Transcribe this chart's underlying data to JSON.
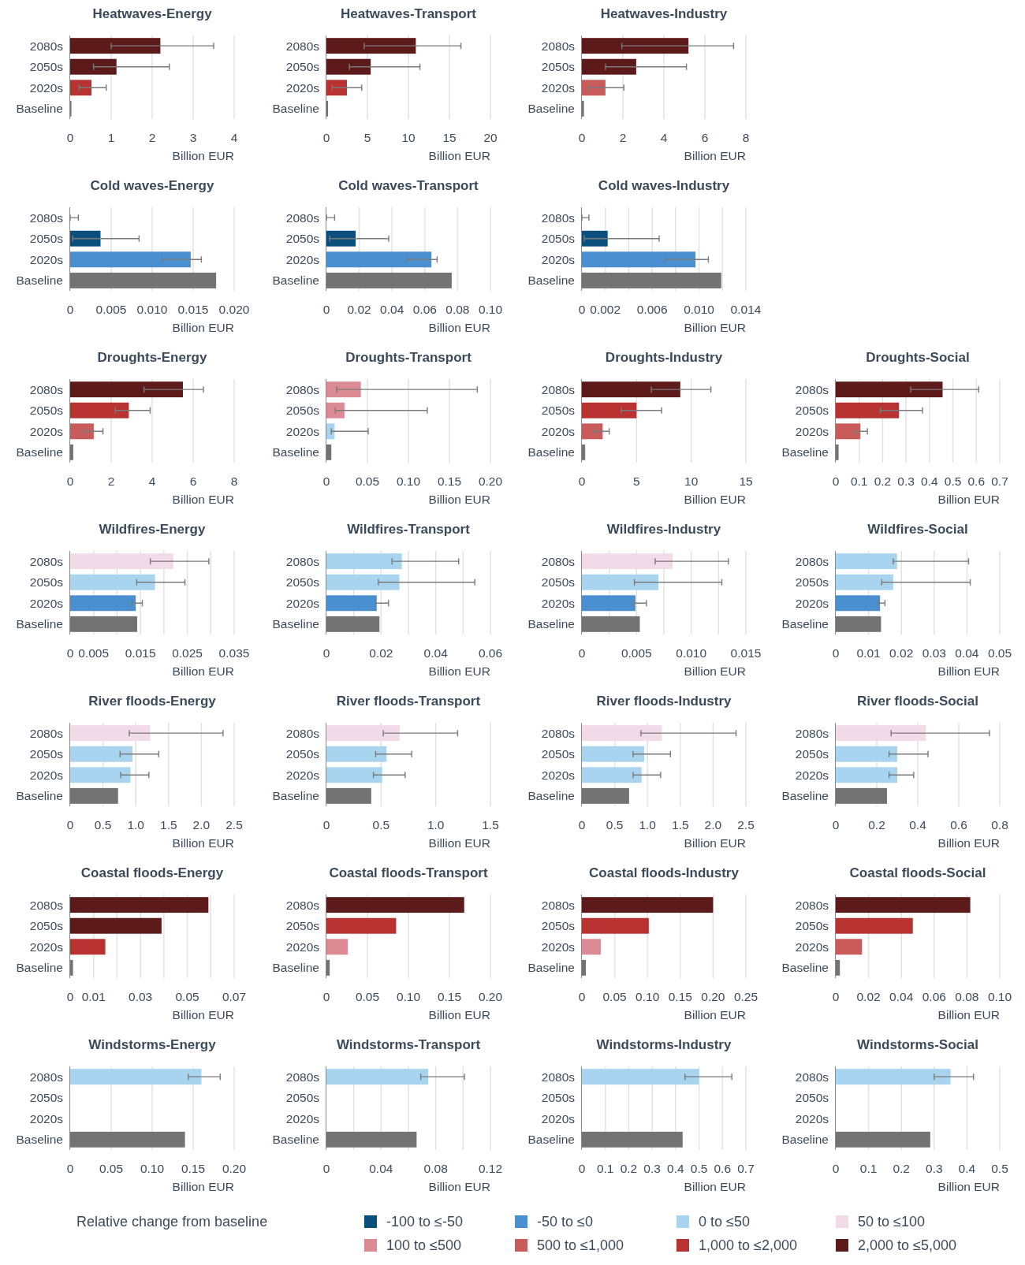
{
  "chart_data": [
    {
      "type": "bar",
      "orientation": "horizontal",
      "title": "Heatwaves-Energy",
      "categories": [
        "2080s",
        "2050s",
        "2020s",
        "Baseline"
      ],
      "values": [
        2.2,
        1.13,
        0.52,
        0.03
      ],
      "colors": [
        "#5c1a1a",
        "#5c1a1a",
        "#b83232",
        "#737373"
      ],
      "errors": [
        [
          1.0,
          3.5
        ],
        [
          0.57,
          2.42
        ],
        [
          0.22,
          0.88
        ],
        null
      ],
      "xlim": [
        0,
        4
      ],
      "xticks": [
        0,
        1,
        2,
        3,
        4
      ],
      "xlabel": "Billion EUR",
      "grid": "x"
    },
    {
      "type": "bar",
      "orientation": "horizontal",
      "title": "Heatwaves-Transport",
      "categories": [
        "2080s",
        "2050s",
        "2020s",
        "Baseline"
      ],
      "values": [
        10.9,
        5.4,
        2.5,
        0.2
      ],
      "colors": [
        "#5c1a1a",
        "#5c1a1a",
        "#b83232",
        "#737373"
      ],
      "errors": [
        [
          4.6,
          16.4
        ],
        [
          2.8,
          11.4
        ],
        [
          0.7,
          4.3
        ],
        null
      ],
      "xlim": [
        0,
        20
      ],
      "xticks": [
        0,
        5,
        10,
        15,
        20
      ],
      "xlabel": "Billion EUR",
      "grid": "x"
    },
    {
      "type": "bar",
      "orientation": "horizontal",
      "title": "Heatwaves-Industry",
      "categories": [
        "2080s",
        "2050s",
        "2020s",
        "Baseline"
      ],
      "values": [
        5.2,
        2.65,
        1.15,
        0.1
      ],
      "colors": [
        "#5c1a1a",
        "#5c1a1a",
        "#c95b5b",
        "#737373"
      ],
      "errors": [
        [
          1.95,
          7.4
        ],
        [
          1.15,
          5.1
        ],
        [
          0.35,
          2.05
        ],
        null
      ],
      "xlim": [
        0,
        8
      ],
      "xticks": [
        0,
        2,
        4,
        6,
        8
      ],
      "xlabel": "Billion EUR",
      "grid": "x"
    },
    {
      "type": "bar",
      "orientation": "horizontal",
      "title": "Cold waves-Energy",
      "categories": [
        "2080s",
        "2050s",
        "2020s",
        "Baseline"
      ],
      "values": [
        0,
        0.0037,
        0.0147,
        0.0178
      ],
      "colors": [
        "#0b4f7c",
        "#0b4f7c",
        "#4a90d0",
        "#737373"
      ],
      "errors": [
        [
          0,
          0.001
        ],
        [
          0.0003,
          0.0084
        ],
        [
          0.0112,
          0.016
        ],
        null
      ],
      "xlim": [
        0,
        0.02
      ],
      "xticks": [
        0,
        0.005,
        {
          "value": 0.01,
          "label": "0.010"
        },
        0.015,
        {
          "value": 0.02,
          "label": "0.020"
        }
      ],
      "xlabel": "Billion EUR",
      "grid": "x"
    },
    {
      "type": "bar",
      "orientation": "horizontal",
      "title": "Cold waves-Transport",
      "categories": [
        "2080s",
        "2050s",
        "2020s",
        "Baseline"
      ],
      "values": [
        0,
        0.0178,
        0.064,
        0.0764
      ],
      "colors": [
        "#0b4f7c",
        "#0b4f7c",
        "#4a90d0",
        "#737373"
      ],
      "errors": [
        [
          0,
          0.005
        ],
        [
          0.002,
          0.038
        ],
        [
          0.049,
          0.0675
        ],
        null
      ],
      "xlim": [
        0,
        0.1
      ],
      "xticks": [
        0,
        0.02,
        0.04,
        0.06,
        0.08,
        {
          "value": 0.1,
          "label": "0.10"
        }
      ],
      "xlabel": "Billion EUR",
      "grid": "x"
    },
    {
      "type": "bar",
      "orientation": "horizontal",
      "title": "Cold waves-Industry",
      "categories": [
        "2080s",
        "2050s",
        "2020s",
        "Baseline"
      ],
      "values": [
        0,
        0.0022,
        0.0097,
        0.0119
      ],
      "colors": [
        "#0b4f7c",
        "#0b4f7c",
        "#4a90d0",
        "#737373"
      ],
      "errors": [
        [
          0,
          0.0006
        ],
        [
          0.0002,
          0.0066
        ],
        [
          0.0071,
          0.0108
        ],
        null
      ],
      "xlim": [
        0,
        0.014
      ],
      "xticks": [
        0,
        0.002,
        {
          "value": 0.004,
          "label": null
        },
        0.006,
        {
          "value": 0.008,
          "label": null
        },
        {
          "value": 0.01,
          "label": "0.010"
        },
        {
          "value": 0.012,
          "label": null
        },
        0.014
      ],
      "xlabel": "Billion EUR",
      "grid": "x"
    },
    {
      "type": "bar",
      "orientation": "horizontal",
      "title": "Droughts-Energy",
      "categories": [
        "2080s",
        "2050s",
        "2020s",
        "Baseline"
      ],
      "values": [
        5.5,
        2.86,
        1.15,
        0.15
      ],
      "colors": [
        "#5c1a1a",
        "#b83232",
        "#c95b5b",
        "#737373"
      ],
      "errors": [
        [
          3.6,
          6.5
        ],
        [
          2.2,
          3.9
        ],
        [
          0.65,
          1.6
        ],
        null
      ],
      "xlim": [
        0,
        8
      ],
      "xticks": [
        0,
        2,
        4,
        6,
        8
      ],
      "xlabel": "Billion EUR",
      "grid": "x"
    },
    {
      "type": "bar",
      "orientation": "horizontal",
      "title": "Droughts-Transport",
      "categories": [
        "2080s",
        "2050s",
        "2020s",
        "Baseline"
      ],
      "values": [
        0.042,
        0.022,
        0.01,
        0.006
      ],
      "colors": [
        "#dc8a93",
        "#dc8a93",
        "#a8d4f0",
        "#737373"
      ],
      "errors": [
        [
          0.0125,
          0.184
        ],
        [
          0.011,
          0.123
        ],
        [
          0.006,
          0.051
        ],
        null
      ],
      "xlim": [
        0,
        0.2
      ],
      "xticks": [
        0,
        0.05,
        {
          "value": 0.1,
          "label": "0.10"
        },
        0.15,
        {
          "value": 0.2,
          "label": "0.20"
        }
      ],
      "xlabel": "Billion EUR",
      "grid": "x"
    },
    {
      "type": "bar",
      "orientation": "horizontal",
      "title": "Droughts-Industry",
      "categories": [
        "2080s",
        "2050s",
        "2020s",
        "Baseline"
      ],
      "values": [
        9,
        5,
        1.9,
        0.3
      ],
      "colors": [
        "#5c1a1a",
        "#b83232",
        "#c95b5b",
        "#737373"
      ],
      "errors": [
        [
          6.35,
          11.8
        ],
        [
          3.6,
          7.3
        ],
        [
          1.0,
          2.5
        ],
        null
      ],
      "xlim": [
        0,
        15
      ],
      "xticks": [
        0,
        5,
        10,
        15
      ],
      "xlabel": "Billion EUR",
      "grid": "x"
    },
    {
      "type": "bar",
      "orientation": "horizontal",
      "title": "Droughts-Social",
      "categories": [
        "2080s",
        "2050s",
        "2020s",
        "Baseline"
      ],
      "values": [
        0.456,
        0.27,
        0.105,
        0.012
      ],
      "colors": [
        "#5c1a1a",
        "#b83232",
        "#c95b5b",
        "#737373"
      ],
      "errors": [
        [
          0.32,
          0.61
        ],
        [
          0.19,
          0.37
        ],
        [
          0.08,
          0.135
        ],
        null
      ],
      "xlim": [
        0,
        0.7
      ],
      "xticks": [
        0,
        0.1,
        0.2,
        0.3,
        0.4,
        0.5,
        0.6,
        0.7
      ],
      "xlabel": "Billion EUR",
      "grid": "x"
    },
    {
      "type": "bar",
      "orientation": "horizontal",
      "title": "Wildfires-Energy",
      "categories": [
        "2080s",
        "2050s",
        "2020s",
        "Baseline"
      ],
      "values": [
        0.022,
        0.0181,
        0.014,
        0.0143
      ],
      "colors": [
        "#f2dbe9",
        "#a8d4f0",
        "#4a90d0",
        "#737373"
      ],
      "errors": [
        [
          0.0171,
          0.0296
        ],
        [
          0.0142,
          0.0245
        ],
        [
          0.0132,
          0.0154
        ],
        null
      ],
      "xlim": [
        0,
        0.035
      ],
      "xticks": [
        0,
        0.005,
        {
          "value": 0.01,
          "label": null
        },
        0.015,
        {
          "value": 0.02,
          "label": null
        },
        0.025,
        {
          "value": 0.03,
          "label": null
        },
        0.035
      ],
      "xlabel": "Billion EUR",
      "grid": "x"
    },
    {
      "type": "bar",
      "orientation": "horizontal",
      "title": "Wildfires-Transport",
      "categories": [
        "2080s",
        "2050s",
        "2020s",
        "Baseline"
      ],
      "values": [
        0.0276,
        0.0267,
        0.0184,
        0.0194
      ],
      "colors": [
        "#a8d4f0",
        "#a8d4f0",
        "#4a90d0",
        "#737373"
      ],
      "errors": [
        [
          0.024,
          0.0484
        ],
        [
          0.019,
          0.0543
        ],
        [
          0.0178,
          0.0227
        ],
        null
      ],
      "xlim": [
        0,
        0.06
      ],
      "xticks": [
        0,
        {
          "value": 0.01,
          "label": null
        },
        0.02,
        {
          "value": 0.03,
          "label": null
        },
        0.04,
        {
          "value": 0.05,
          "label": null
        },
        0.06
      ],
      "xlabel": "Billion EUR",
      "grid": "x"
    },
    {
      "type": "bar",
      "orientation": "horizontal",
      "title": "Wildfires-Industry",
      "categories": [
        "2080s",
        "2050s",
        "2020s",
        "Baseline"
      ],
      "values": [
        0.0083,
        0.007,
        0.0049,
        0.0053
      ],
      "colors": [
        "#f2dbe9",
        "#a8d4f0",
        "#4a90d0",
        "#737373"
      ],
      "errors": [
        [
          0.0067,
          0.0134
        ],
        [
          0.0048,
          0.0128
        ],
        [
          0.0046,
          0.0059
        ],
        null
      ],
      "xlim": [
        0,
        0.015
      ],
      "xticks": [
        0,
        {
          "value": 0.0025,
          "label": null
        },
        0.005,
        {
          "value": 0.0075,
          "label": null
        },
        {
          "value": 0.01,
          "label": "0.010"
        },
        {
          "value": 0.0125,
          "label": null
        },
        0.015
      ],
      "xlabel": "Billion EUR",
      "grid": "x"
    },
    {
      "type": "bar",
      "orientation": "horizontal",
      "title": "Wildfires-Social",
      "categories": [
        "2080s",
        "2050s",
        "2020s",
        "Baseline"
      ],
      "values": [
        0.0187,
        0.0175,
        0.0135,
        0.0138
      ],
      "colors": [
        "#a8d4f0",
        "#a8d4f0",
        "#4a90d0",
        "#737373"
      ],
      "errors": [
        [
          0.0175,
          0.0405
        ],
        [
          0.014,
          0.041
        ],
        [
          0.0128,
          0.015
        ],
        null
      ],
      "xlim": [
        0,
        0.05
      ],
      "xticks": [
        0,
        0.01,
        0.02,
        0.03,
        0.04,
        0.05
      ],
      "xlabel": "Billion EUR",
      "grid": "x"
    },
    {
      "type": "bar",
      "orientation": "horizontal",
      "title": "River floods-Energy",
      "categories": [
        "2080s",
        "2050s",
        "2020s",
        "Baseline"
      ],
      "values": [
        1.22,
        0.95,
        0.92,
        0.73
      ],
      "colors": [
        "#f2dbe9",
        "#a8d4f0",
        "#a8d4f0",
        "#737373"
      ],
      "errors": [
        [
          0.9,
          2.33
        ],
        [
          0.76,
          1.35
        ],
        [
          0.77,
          1.2
        ],
        null
      ],
      "xlim": [
        0,
        2.5
      ],
      "xticks": [
        0,
        0.5,
        {
          "value": 1,
          "label": "1.0"
        },
        1.5,
        {
          "value": 2,
          "label": "2.0"
        },
        2.5
      ],
      "xlabel": "Billion EUR",
      "grid": "x"
    },
    {
      "type": "bar",
      "orientation": "horizontal",
      "title": "River floods-Transport",
      "categories": [
        "2080s",
        "2050s",
        "2020s",
        "Baseline"
      ],
      "values": [
        0.67,
        0.55,
        0.51,
        0.41
      ],
      "colors": [
        "#f2dbe9",
        "#a8d4f0",
        "#a8d4f0",
        "#737373"
      ],
      "errors": [
        [
          0.52,
          1.2
        ],
        [
          0.45,
          0.78
        ],
        [
          0.43,
          0.72
        ],
        null
      ],
      "xlim": [
        0,
        1.5
      ],
      "xticks": [
        0,
        0.5,
        {
          "value": 1,
          "label": "1.0"
        },
        1.5
      ],
      "xlabel": "Billion EUR",
      "grid": "x"
    },
    {
      "type": "bar",
      "orientation": "horizontal",
      "title": "River floods-Industry",
      "categories": [
        "2080s",
        "2050s",
        "2020s",
        "Baseline"
      ],
      "values": [
        1.22,
        0.95,
        0.91,
        0.72
      ],
      "colors": [
        "#f2dbe9",
        "#a8d4f0",
        "#a8d4f0",
        "#737373"
      ],
      "errors": [
        [
          0.9,
          2.35
        ],
        [
          0.78,
          1.35
        ],
        [
          0.78,
          1.2
        ],
        null
      ],
      "xlim": [
        0,
        2.5
      ],
      "xticks": [
        0,
        0.5,
        {
          "value": 1,
          "label": "1.0"
        },
        1.5,
        {
          "value": 2,
          "label": "2.0"
        },
        2.5
      ],
      "xlabel": "Billion EUR",
      "grid": "x"
    },
    {
      "type": "bar",
      "orientation": "horizontal",
      "title": "River floods-Social",
      "categories": [
        "2080s",
        "2050s",
        "2020s",
        "Baseline"
      ],
      "values": [
        0.44,
        0.3,
        0.3,
        0.25
      ],
      "colors": [
        "#f2dbe9",
        "#a8d4f0",
        "#a8d4f0",
        "#737373"
      ],
      "errors": [
        [
          0.27,
          0.75
        ],
        [
          0.26,
          0.45
        ],
        [
          0.26,
          0.38
        ],
        null
      ],
      "xlim": [
        0,
        0.8
      ],
      "xticks": [
        0,
        0.2,
        0.4,
        0.6,
        0.8
      ],
      "xlabel": "Billion EUR",
      "grid": "x"
    },
    {
      "type": "bar",
      "orientation": "horizontal",
      "title": "Coastal floods-Energy",
      "categories": [
        "2080s",
        "2050s",
        "2020s",
        "Baseline"
      ],
      "values": [
        0.059,
        0.039,
        0.015,
        0.0012
      ],
      "colors": [
        "#5c1a1a",
        "#5c1a1a",
        "#b83232",
        "#737373"
      ],
      "xlim": [
        0,
        0.07
      ],
      "xticks": [
        0,
        0.01,
        {
          "value": 0.02,
          "label": null
        },
        0.03,
        {
          "value": 0.04,
          "label": null
        },
        0.05,
        {
          "value": 0.06,
          "label": null
        },
        0.07
      ],
      "xlabel": "Billion EUR",
      "grid": "x"
    },
    {
      "type": "bar",
      "orientation": "horizontal",
      "title": "Coastal floods-Transport",
      "categories": [
        "2080s",
        "2050s",
        "2020s",
        "Baseline"
      ],
      "values": [
        0.168,
        0.085,
        0.026,
        0.004
      ],
      "colors": [
        "#5c1a1a",
        "#b83232",
        "#dc8a93",
        "#737373"
      ],
      "xlim": [
        0,
        0.2
      ],
      "xticks": [
        0,
        0.05,
        {
          "value": 0.1,
          "label": "0.10"
        },
        0.15,
        {
          "value": 0.2,
          "label": "0.20"
        }
      ],
      "xlabel": "Billion EUR",
      "grid": "x"
    },
    {
      "type": "bar",
      "orientation": "horizontal",
      "title": "Coastal floods-Industry",
      "categories": [
        "2080s",
        "2050s",
        "2020s",
        "Baseline"
      ],
      "values": [
        0.2,
        0.102,
        0.029,
        0.006
      ],
      "colors": [
        "#5c1a1a",
        "#b83232",
        "#dc8a93",
        "#737373"
      ],
      "xlim": [
        0,
        0.25
      ],
      "xticks": [
        0,
        0.05,
        {
          "value": 0.1,
          "label": "0.10"
        },
        0.15,
        {
          "value": 0.2,
          "label": "0.20"
        },
        0.25
      ],
      "xlabel": "Billion EUR",
      "grid": "x"
    },
    {
      "type": "bar",
      "orientation": "horizontal",
      "title": "Coastal floods-Social",
      "categories": [
        "2080s",
        "2050s",
        "2020s",
        "Baseline"
      ],
      "values": [
        0.082,
        0.047,
        0.016,
        0.0025
      ],
      "colors": [
        "#5c1a1a",
        "#b83232",
        "#c95b5b",
        "#737373"
      ],
      "xlim": [
        0,
        0.1
      ],
      "xticks": [
        0,
        0.02,
        0.04,
        0.06,
        0.08,
        {
          "value": 0.1,
          "label": "0.10"
        }
      ],
      "xlabel": "Billion EUR",
      "grid": "x"
    },
    {
      "type": "bar",
      "orientation": "horizontal",
      "title": "Windstorms-Energy",
      "categories": [
        "2080s",
        "2050s",
        "2020s",
        "Baseline"
      ],
      "values": [
        0.16,
        null,
        null,
        0.14
      ],
      "colors": [
        "#a8d4f0",
        null,
        null,
        "#737373"
      ],
      "errors": [
        [
          0.144,
          0.183
        ],
        null,
        null,
        null
      ],
      "xlim": [
        0,
        0.2
      ],
      "xticks": [
        0,
        0.05,
        {
          "value": 0.1,
          "label": "0.10"
        },
        0.15,
        {
          "value": 0.2,
          "label": "0.20"
        }
      ],
      "xlabel": "Billion EUR",
      "grid": "x"
    },
    {
      "type": "bar",
      "orientation": "horizontal",
      "title": "Windstorms-Transport",
      "categories": [
        "2080s",
        "2050s",
        "2020s",
        "Baseline"
      ],
      "values": [
        0.0745,
        null,
        null,
        0.066
      ],
      "colors": [
        "#a8d4f0",
        null,
        null,
        "#737373"
      ],
      "errors": [
        [
          0.069,
          0.101
        ],
        null,
        null,
        null
      ],
      "xlim": [
        0,
        0.12
      ],
      "xticks": [
        0,
        {
          "value": 0.02,
          "label": null
        },
        0.04,
        {
          "value": 0.06,
          "label": null
        },
        0.08,
        {
          "value": 0.1,
          "label": null
        },
        0.12
      ],
      "xlabel": "Billion EUR",
      "grid": "x"
    },
    {
      "type": "bar",
      "orientation": "horizontal",
      "title": "Windstorms-Industry",
      "categories": [
        "2080s",
        "2050s",
        "2020s",
        "Baseline"
      ],
      "values": [
        0.5,
        null,
        null,
        0.43
      ],
      "colors": [
        "#a8d4f0",
        null,
        null,
        "#737373"
      ],
      "errors": [
        [
          0.44,
          0.64
        ],
        null,
        null,
        null
      ],
      "xlim": [
        0,
        0.7
      ],
      "xticks": [
        0,
        0.1,
        0.2,
        0.3,
        0.4,
        0.5,
        0.6,
        0.7
      ],
      "xlabel": "Billion EUR",
      "grid": "x"
    },
    {
      "type": "bar",
      "orientation": "horizontal",
      "title": "Windstorms-Social",
      "categories": [
        "2080s",
        "2050s",
        "2020s",
        "Baseline"
      ],
      "values": [
        0.35,
        null,
        null,
        0.288
      ],
      "colors": [
        "#a8d4f0",
        null,
        null,
        "#737373"
      ],
      "errors": [
        [
          0.3,
          0.42
        ],
        null,
        null,
        null
      ],
      "xlim": [
        0,
        0.5
      ],
      "xticks": [
        0,
        0.1,
        0.2,
        0.3,
        0.4,
        0.5
      ],
      "xlabel": "Billion EUR",
      "grid": "x"
    },
    {
      "type": "other",
      "legend_title": "Relative change from baseline",
      "categories": [
        "-100 to ≤-50",
        "-50 to ≤0",
        "0 to ≤50",
        "50 to ≤100",
        "100 to ≤500",
        "500 to ≤1,000",
        "1,000 to ≤2,000",
        "2,000 to ≤5,000"
      ],
      "colors": [
        "#0b4f7c",
        "#4a90d0",
        "#a8d4f0",
        "#f2dbe9",
        "#dc8a93",
        "#c95b5b",
        "#b83232",
        "#5c1a1a"
      ]
    }
  ]
}
